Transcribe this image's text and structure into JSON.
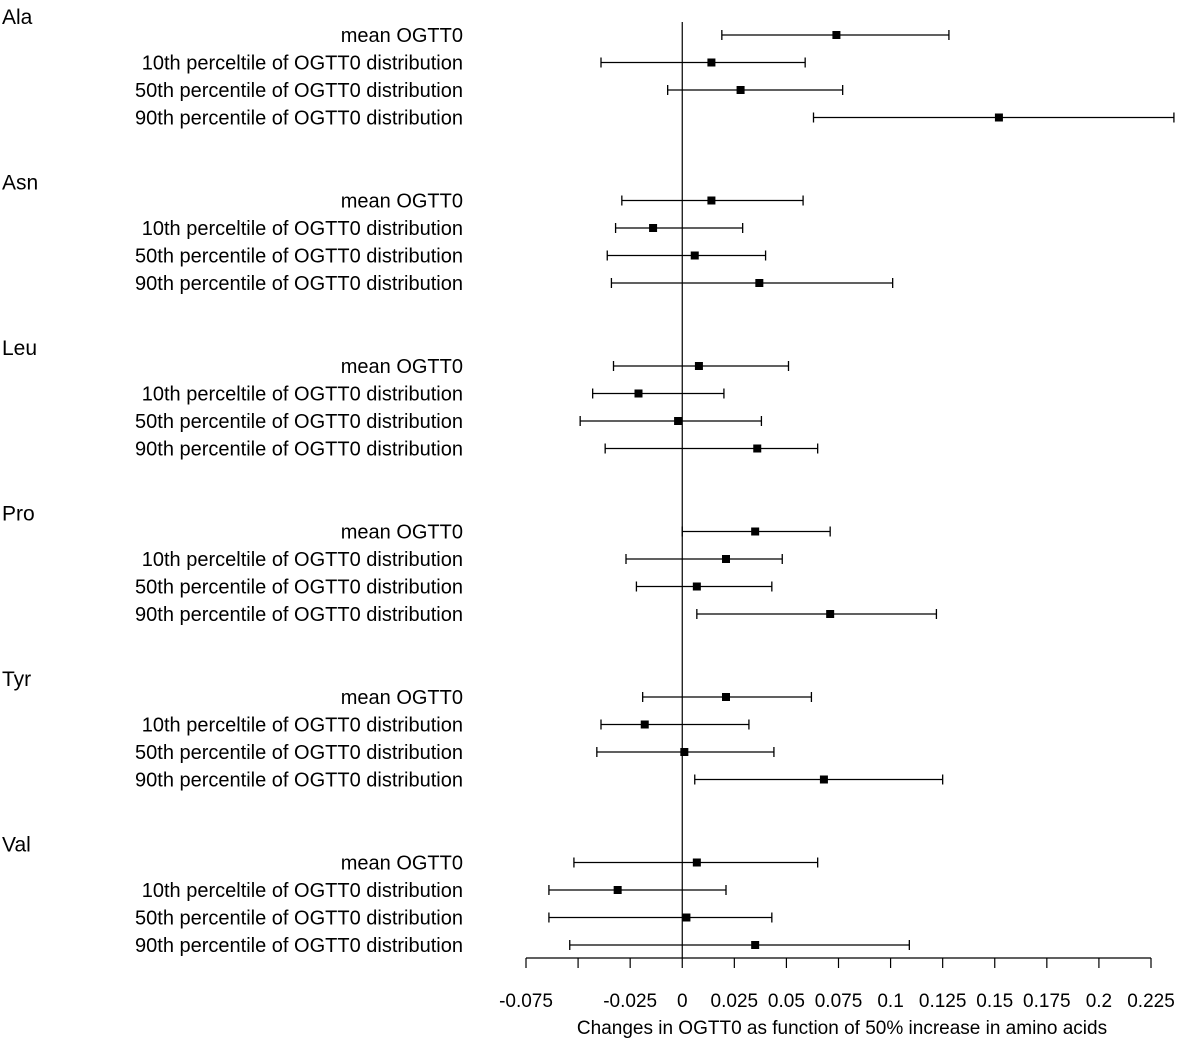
{
  "chart_data": {
    "type": "forest",
    "xlabel": "Changes in OGTT0 as function of 50% increase in amino acids",
    "ylabel": "",
    "title": "",
    "xlim": [
      -0.075,
      0.225
    ],
    "x_ticks": [
      -0.075,
      -0.05,
      -0.025,
      0,
      0.025,
      0.05,
      0.075,
      0.1,
      0.125,
      0.15,
      0.175,
      0.2,
      0.225
    ],
    "x_tick_labels": [
      "-0.075",
      "",
      "-0.025",
      "0",
      "0.025",
      "0.05",
      "0.075",
      "0.1",
      "0.125",
      "0.15",
      "0.175",
      "0.2",
      "0.225"
    ],
    "reference_line": 0,
    "groups": [
      {
        "name": "Ala",
        "rows": [
          {
            "label": "mean OGTT0",
            "estimate": 0.074,
            "lower": 0.019,
            "upper": 0.128
          },
          {
            "label": "10th perceltile of OGTT0 distribution",
            "estimate": 0.014,
            "lower": -0.039,
            "upper": 0.059
          },
          {
            "label": "50th percentile of OGTT0 distribution",
            "estimate": 0.028,
            "lower": -0.007,
            "upper": 0.077
          },
          {
            "label": "90th percentile of OGTT0 distribution",
            "estimate": 0.152,
            "lower": 0.063,
            "upper": 0.236
          }
        ]
      },
      {
        "name": "Asn",
        "rows": [
          {
            "label": "mean OGTT0",
            "estimate": 0.014,
            "lower": -0.029,
            "upper": 0.058
          },
          {
            "label": "10th perceltile of OGTT0 distribution",
            "estimate": -0.014,
            "lower": -0.032,
            "upper": 0.029
          },
          {
            "label": "50th percentile of OGTT0 distribution",
            "estimate": 0.006,
            "lower": -0.036,
            "upper": 0.04
          },
          {
            "label": "90th percentile of OGTT0 distribution",
            "estimate": 0.037,
            "lower": -0.034,
            "upper": 0.101
          }
        ]
      },
      {
        "name": "Leu",
        "rows": [
          {
            "label": "mean OGTT0",
            "estimate": 0.008,
            "lower": -0.033,
            "upper": 0.051
          },
          {
            "label": "10th perceltile of OGTT0 distribution",
            "estimate": -0.021,
            "lower": -0.043,
            "upper": 0.02
          },
          {
            "label": "50th percentile of OGTT0 distribution",
            "estimate": -0.002,
            "lower": -0.049,
            "upper": 0.038
          },
          {
            "label": "90th percentile of OGTT0 distribution",
            "estimate": 0.036,
            "lower": -0.037,
            "upper": 0.065
          }
        ]
      },
      {
        "name": "Pro",
        "rows": [
          {
            "label": "mean OGTT0",
            "estimate": 0.035,
            "lower": 0.0,
            "upper": 0.071
          },
          {
            "label": "10th perceltile of OGTT0 distribution",
            "estimate": 0.021,
            "lower": -0.027,
            "upper": 0.048
          },
          {
            "label": "50th percentile of OGTT0 distribution",
            "estimate": 0.007,
            "lower": -0.022,
            "upper": 0.043
          },
          {
            "label": "90th percentile of OGTT0 distribution",
            "estimate": 0.071,
            "lower": 0.007,
            "upper": 0.122
          }
        ]
      },
      {
        "name": "Tyr",
        "rows": [
          {
            "label": "mean OGTT0",
            "estimate": 0.021,
            "lower": -0.019,
            "upper": 0.062
          },
          {
            "label": "10th perceltile of OGTT0 distribution",
            "estimate": -0.018,
            "lower": -0.039,
            "upper": 0.032
          },
          {
            "label": "50th percentile of OGTT0 distribution",
            "estimate": 0.001,
            "lower": -0.041,
            "upper": 0.044
          },
          {
            "label": "90th percentile of OGTT0 distribution",
            "estimate": 0.068,
            "lower": 0.006,
            "upper": 0.125
          }
        ]
      },
      {
        "name": "Val",
        "rows": [
          {
            "label": "mean OGTT0",
            "estimate": 0.007,
            "lower": -0.052,
            "upper": 0.065
          },
          {
            "label": "10th perceltile of OGTT0 distribution",
            "estimate": -0.031,
            "lower": -0.064,
            "upper": 0.021
          },
          {
            "label": "50th percentile of OGTT0 distribution",
            "estimate": 0.002,
            "lower": -0.064,
            "upper": 0.043
          },
          {
            "label": "90th percentile of OGTT0 distribution",
            "estimate": 0.035,
            "lower": -0.054,
            "upper": 0.109
          }
        ]
      }
    ]
  }
}
